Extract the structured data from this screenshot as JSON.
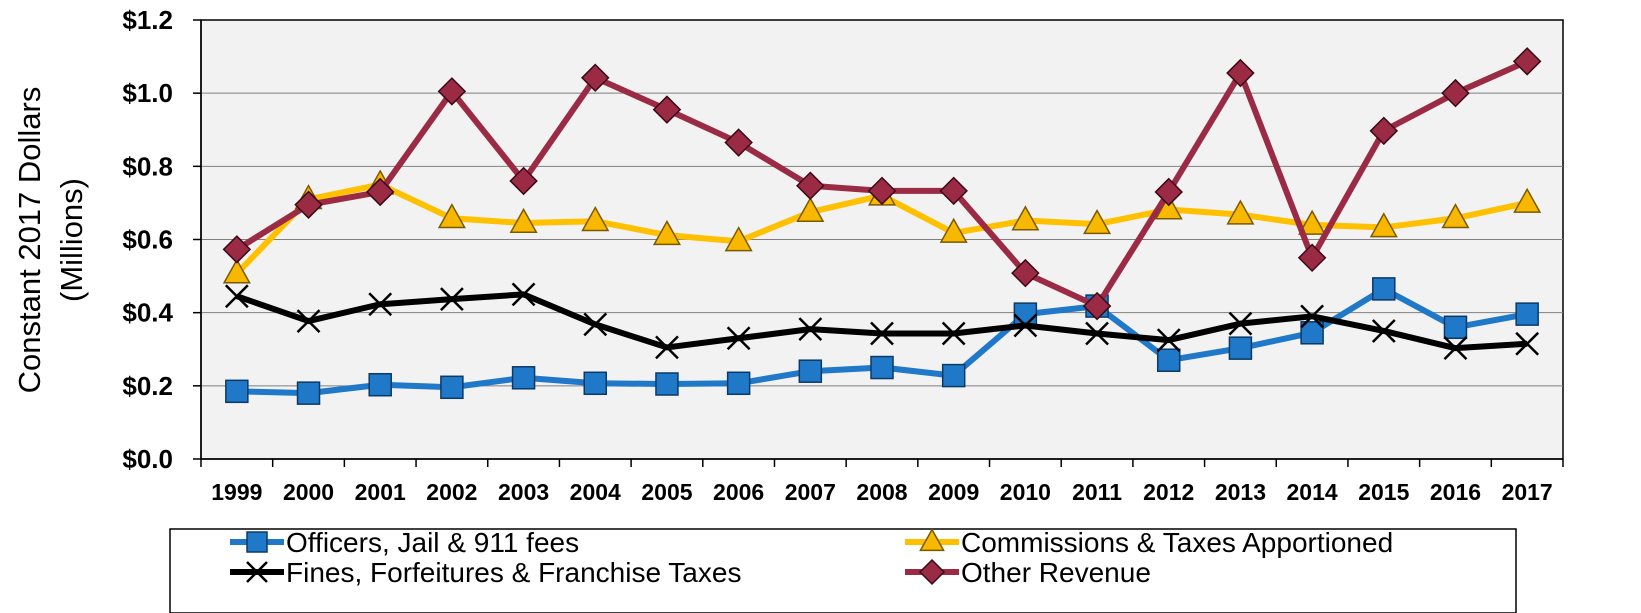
{
  "chart_data": {
    "type": "line",
    "title": "",
    "xlabel": "",
    "ylabel": "Constant 2017 Dollars (Millions)",
    "ylabel_lines": [
      "Constant 2017 Dollars",
      "(Millions)"
    ],
    "ylim": [
      0,
      1.2
    ],
    "y_ticks": [
      0,
      0.2,
      0.4,
      0.6,
      0.8,
      1.0,
      1.2
    ],
    "y_tick_labels": [
      "$0.0",
      "$0.2",
      "$0.4",
      "$0.6",
      "$0.8",
      "$1.0",
      "$1.2"
    ],
    "grid": true,
    "legend_position": "bottom",
    "plot_background": "#f2f2f2",
    "categories": [
      "1999",
      "2000",
      "2001",
      "2002",
      "2003",
      "2004",
      "2005",
      "2006",
      "2007",
      "2008",
      "2009",
      "2010",
      "2011",
      "2012",
      "2013",
      "2014",
      "2015",
      "2016",
      "2017"
    ],
    "series": [
      {
        "name": "Officers, Jail & 911 fees",
        "color": "#1f78c8",
        "marker": "square",
        "marker_fill": "#1f78c8",
        "values": [
          0.185,
          0.18,
          0.203,
          0.196,
          0.222,
          0.207,
          0.205,
          0.207,
          0.24,
          0.25,
          0.228,
          0.396,
          0.418,
          0.27,
          0.303,
          0.345,
          0.465,
          0.36,
          0.396
        ]
      },
      {
        "name": "Commissions & Taxes Apportioned",
        "color": "#ffc000",
        "marker": "triangle",
        "marker_fill": "#f8b800",
        "values": [
          0.507,
          0.71,
          0.75,
          0.658,
          0.645,
          0.65,
          0.612,
          0.595,
          0.675,
          0.72,
          0.618,
          0.652,
          0.642,
          0.682,
          0.668,
          0.64,
          0.633,
          0.658,
          0.7
        ]
      },
      {
        "name": "Fines, Forfeitures & Franchise Taxes",
        "color": "#000000",
        "marker": "x",
        "marker_fill": "#000000",
        "values": [
          0.445,
          0.377,
          0.423,
          0.437,
          0.45,
          0.368,
          0.305,
          0.33,
          0.355,
          0.343,
          0.343,
          0.365,
          0.343,
          0.325,
          0.37,
          0.39,
          0.35,
          0.303,
          0.315
        ]
      },
      {
        "name": "Other Revenue",
        "color": "#9b2a45",
        "marker": "diamond",
        "marker_fill": "#9b2a45",
        "values": [
          0.573,
          0.695,
          0.73,
          1.005,
          0.76,
          1.042,
          0.955,
          0.865,
          0.747,
          0.733,
          0.733,
          0.508,
          0.418,
          0.73,
          1.055,
          0.55,
          0.897,
          1.0,
          1.087
        ]
      }
    ]
  }
}
